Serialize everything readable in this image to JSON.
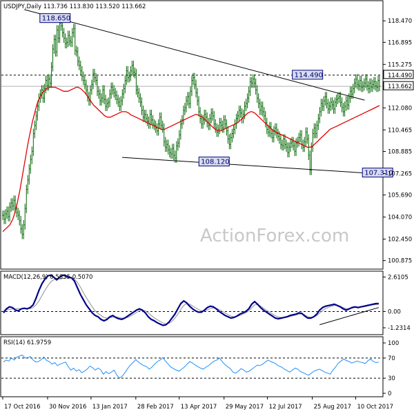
{
  "chart_data": [
    {
      "type": "candlestick",
      "header": "USDJPY,Daily  113.736 113.830 113.520 113.662",
      "watermark": "ActionForex.com",
      "colors": {
        "candle": "#006400",
        "ma": "#e00000",
        "trendline": "#000000",
        "label_bg": "#d7dcf0",
        "label_border": "#000080"
      },
      "y_ticks": [
        "118.470",
        "116.895",
        "115.275",
        "113.662",
        "112.080",
        "110.465",
        "108.885",
        "107.265",
        "105.690",
        "104.070",
        "102.450",
        "100.875"
      ],
      "y_tick_values": [
        118.47,
        116.895,
        115.275,
        113.662,
        112.08,
        110.465,
        108.885,
        107.265,
        105.69,
        104.07,
        102.45,
        100.875
      ],
      "ylim": [
        100.3,
        119.9
      ],
      "current_price": "113.662",
      "current_price_value": 113.662,
      "resistance": "114.490",
      "resistance_value": 114.49,
      "annotations": [
        {
          "text": "118.650",
          "x": 34,
          "y": 118.65
        },
        {
          "text": "114.490",
          "x": 261,
          "y": 114.49
        },
        {
          "text": "108.120",
          "x": 177,
          "y": 108.12
        },
        {
          "text": "107.310",
          "x": 324,
          "y": 107.31
        }
      ],
      "trendlines": [
        {
          "from": [
            20,
            119.3
          ],
          "to": [
            326,
            112.65
          ]
        },
        {
          "from": [
            108,
            108.45
          ],
          "to": [
            346,
            107.2
          ]
        }
      ],
      "x_ticks": [
        "17 Oct 2016",
        "30 Nov 2016",
        "13 Jan 2017",
        "28 Feb 2017",
        "13 Apr 2017",
        "29 May 2017",
        "12 Jul 2017",
        "25 Aug 2017",
        "10 Oct 2017"
      ],
      "x_tick_index": [
        0,
        32,
        63,
        95,
        126,
        158,
        189,
        221,
        252
      ],
      "x_count": 270,
      "closes": [
        104.2,
        103.9,
        104.3,
        104.5,
        104.1,
        104.8,
        105.1,
        104.9,
        105.3,
        104.7,
        104.4,
        104.2,
        103.8,
        103.2,
        102.8,
        103.5,
        104.7,
        106.1,
        106.8,
        107.6,
        108.3,
        108.9,
        110.2,
        110.8,
        111.5,
        112.2,
        112.8,
        113.1,
        113.4,
        112.8,
        113.5,
        114.1,
        113.7,
        114.2,
        113.9,
        115.1,
        116.4,
        117.1,
        116.2,
        117.8,
        117.2,
        118.3,
        118.1,
        117.6,
        117.2,
        116.8,
        116.9,
        117.4,
        117.0,
        116.9,
        117.6,
        117.9,
        116.3,
        116.2,
        115.5,
        115.2,
        114.8,
        114.4,
        114.1,
        113.8,
        113.4,
        112.9,
        112.6,
        113.4,
        113.8,
        114.6,
        114.3,
        114.1,
        113.3,
        113.1,
        112.6,
        112.8,
        113.4,
        112.7,
        112.2,
        112.4,
        112.5,
        113.1,
        113.6,
        113.4,
        113.2,
        113.0,
        112.7,
        112.5,
        112.2,
        112.6,
        113.1,
        113.5,
        114.1,
        114.8,
        114.3,
        114.4,
        114.8,
        115.2,
        114.7,
        114.6,
        113.4,
        113.2,
        112.8,
        112.5,
        111.9,
        111.4,
        111.6,
        111.3,
        111.1,
        110.9,
        111.6,
        111.2,
        110.9,
        110.8,
        110.6,
        110.4,
        110.9,
        111.4,
        110.8,
        110.6,
        109.6,
        109.2,
        109.4,
        109.0,
        108.8,
        108.7,
        109.1,
        108.6,
        108.4,
        109.3,
        109.5,
        110.1,
        110.9,
        111.2,
        111.9,
        112.1,
        112.6,
        112.9,
        112.4,
        113.3,
        114.1,
        114.3,
        113.8,
        113.2,
        112.6,
        111.8,
        111.3,
        110.9,
        111.2,
        111.6,
        111.4,
        111.0,
        110.8,
        111.3,
        111.7,
        111.5,
        110.9,
        110.6,
        110.3,
        110.5,
        111.0,
        110.8,
        110.6,
        111.2,
        110.9,
        110.4,
        109.8,
        109.4,
        109.9,
        110.2,
        110.5,
        110.9,
        111.3,
        111.5,
        111.9,
        111.7,
        111.3,
        111.6,
        112.2,
        112.4,
        112.8,
        113.3,
        114.0,
        113.9,
        114.2,
        113.9,
        113.4,
        112.8,
        112.4,
        111.9,
        112.2,
        111.8,
        111.5,
        111.0,
        110.5,
        110.3,
        110.7,
        110.2,
        109.9,
        110.4,
        110.6,
        110.2,
        110.0,
        109.8,
        109.4,
        109.3,
        109.8,
        109.4,
        109.2,
        108.8,
        109.2,
        109.5,
        109.6,
        109.3,
        108.9,
        109.5,
        109.6,
        109.9,
        110.1,
        109.4,
        109.2,
        109.6,
        110.3,
        109.8,
        108.6,
        107.5,
        109.2,
        110.2,
        110.6,
        110.2,
        110.8,
        111.3,
        111.8,
        112.4,
        112.2,
        112.6,
        112.9,
        112.4,
        112.0,
        112.2,
        112.5,
        112.3,
        112.0,
        112.5,
        112.7,
        112.8,
        112.9,
        112.5,
        112.1,
        111.8,
        112.2,
        112.6,
        112.3,
        112.8,
        113.3,
        113.1,
        113.5,
        113.9,
        114.2,
        113.8,
        113.7,
        114.1,
        113.6,
        113.7,
        113.9,
        114.2,
        113.7,
        113.5,
        113.9,
        113.6,
        113.8,
        114.0,
        113.7,
        113.6,
        114.1,
        113.662
      ],
      "ma": [
        103.0,
        103.1,
        103.2,
        103.3,
        103.4,
        103.5,
        103.7,
        103.9,
        104.2,
        104.6,
        105.0,
        105.5,
        106.0,
        106.6,
        107.2,
        107.8,
        108.4,
        109.0,
        109.6,
        110.1,
        110.6,
        111.1,
        111.5,
        111.9,
        112.3,
        112.6,
        112.8,
        113.0,
        113.2,
        113.3,
        113.4,
        113.5,
        113.55,
        113.6,
        113.6,
        113.6,
        113.6,
        113.6,
        113.55,
        113.5,
        113.45,
        113.4,
        113.35,
        113.3,
        113.3,
        113.3,
        113.3,
        113.35,
        113.4,
        113.45,
        113.5,
        113.55,
        113.6,
        113.6,
        113.55,
        113.5,
        113.4,
        113.3,
        113.2,
        113.05,
        112.9,
        112.75,
        112.6,
        112.45,
        112.3,
        112.2,
        112.1,
        112.0,
        111.9,
        111.8,
        111.7,
        111.6,
        111.5,
        111.45,
        111.4,
        111.4,
        111.4,
        111.45,
        111.5,
        111.55,
        111.6,
        111.65,
        111.7,
        111.75,
        111.8,
        111.8,
        111.8,
        111.8,
        111.75,
        111.7,
        111.6,
        111.55,
        111.5,
        111.45,
        111.4,
        111.35,
        111.3,
        111.25,
        111.2,
        111.15,
        111.1,
        111.05,
        111.0,
        110.95,
        110.9,
        110.85,
        110.8,
        110.75,
        110.7,
        110.65,
        110.6,
        110.55,
        110.5,
        110.5,
        110.5,
        110.55,
        110.6,
        110.65,
        110.7,
        110.75,
        110.8,
        110.85,
        110.9,
        110.95,
        111.0,
        111.05,
        111.1,
        111.15,
        111.2,
        111.25,
        111.3,
        111.35,
        111.4,
        111.45,
        111.5,
        111.55,
        111.6,
        111.6,
        111.55,
        111.5,
        111.45,
        111.4,
        111.3,
        111.2,
        111.1,
        111.0,
        110.9,
        110.8,
        110.7,
        110.6,
        110.5,
        110.45,
        110.4,
        110.4,
        110.4,
        110.45,
        110.5,
        110.55,
        110.6,
        110.65,
        110.7,
        110.75,
        110.8,
        110.85,
        110.9,
        110.95,
        111.0,
        111.1,
        111.2,
        111.3,
        111.4,
        111.5,
        111.6,
        111.7,
        111.75,
        111.8,
        111.8,
        111.75,
        111.7,
        111.6,
        111.5,
        111.4,
        111.3,
        111.2,
        111.1,
        111.0,
        110.9,
        110.8,
        110.7,
        110.6,
        110.5,
        110.4,
        110.35,
        110.3,
        110.25,
        110.2,
        110.15,
        110.1,
        110.05,
        110.0,
        109.95,
        109.9,
        109.85,
        109.8,
        109.75,
        109.7,
        109.65,
        109.6,
        109.55,
        109.5,
        109.45,
        109.4,
        109.35,
        109.3,
        109.25,
        109.2,
        109.2,
        109.2,
        109.25,
        109.3,
        109.4,
        109.5,
        109.6,
        109.7,
        109.8,
        109.9,
        110.0,
        110.1,
        110.2,
        110.3,
        110.4,
        110.5,
        110.55,
        110.6,
        110.65,
        110.7,
        110.75,
        110.8,
        110.85,
        110.9,
        110.95,
        111.0,
        111.05,
        111.1,
        111.15,
        111.2,
        111.25,
        111.3,
        111.35,
        111.4,
        111.45,
        111.5,
        111.55,
        111.6,
        111.65,
        111.7,
        111.75,
        111.8,
        111.85,
        111.9,
        111.95,
        112.0,
        112.05,
        112.1,
        112.15,
        112.2,
        112.25
      ]
    },
    {
      "type": "line",
      "title": "MACD(12,26,9) 0.5835 0.5070",
      "y_ticks": [
        "2.6105",
        "0.00",
        "-1.2314"
      ],
      "y_tick_values": [
        2.6105,
        0.0,
        -1.2314
      ],
      "ylim": [
        -1.7,
        3.0
      ],
      "zero_line": true,
      "series": [
        {
          "values": [
            -0.1,
            0.2,
            0.35,
            0.3,
            0.1,
            0.05,
            0.2,
            0.25,
            0.2,
            0.3,
            0.5,
            1.0,
            1.6,
            2.1,
            2.45,
            2.7,
            2.75,
            2.6,
            2.4,
            2.6,
            2.75,
            2.7,
            2.6,
            2.55,
            2.3,
            1.8,
            1.3,
            0.9,
            0.5,
            0.2,
            -0.1,
            -0.3,
            -0.4,
            -0.6,
            -0.7,
            -0.6,
            -0.4,
            -0.3,
            -0.45,
            -0.55,
            -0.6,
            -0.5,
            -0.35,
            -0.2,
            -0.05,
            0.1,
            0.2,
            0.1,
            -0.1,
            -0.4,
            -0.6,
            -0.7,
            -0.85,
            -0.95,
            -1.05,
            -1.0,
            -0.8,
            -0.5,
            -0.2,
            0.2,
            0.6,
            0.8,
            0.65,
            0.4,
            0.2,
            0.05,
            -0.05,
            -0.05,
            0.1,
            0.3,
            0.4,
            0.35,
            0.2,
            0.0,
            -0.15,
            -0.3,
            -0.4,
            -0.5,
            -0.45,
            -0.35,
            -0.2,
            -0.1,
            0.0,
            0.2,
            0.55,
            0.75,
            0.55,
            0.3,
            0.1,
            -0.05,
            -0.2,
            -0.35,
            -0.5,
            -0.55,
            -0.5,
            -0.45,
            -0.4,
            -0.3,
            -0.25,
            -0.2,
            -0.1,
            -0.15,
            -0.35,
            -0.5,
            -0.5,
            -0.4,
            -0.2,
            0.1,
            0.3,
            0.4,
            0.45,
            0.5,
            0.55,
            0.45,
            0.35,
            0.2,
            0.1,
            0.2,
            0.3,
            0.35,
            0.3,
            0.35,
            0.4,
            0.45,
            0.5,
            0.55,
            0.6,
            0.6
          ]
        },
        {
          "values": [
            0.1,
            0.12,
            0.15,
            0.2,
            0.22,
            0.22,
            0.2,
            0.2,
            0.2,
            0.22,
            0.3,
            0.5,
            0.8,
            1.2,
            1.6,
            1.95,
            2.25,
            2.4,
            2.45,
            2.45,
            2.5,
            2.55,
            2.57,
            2.55,
            2.45,
            2.2,
            1.85,
            1.45,
            1.05,
            0.7,
            0.35,
            0.05,
            -0.15,
            -0.3,
            -0.45,
            -0.5,
            -0.48,
            -0.42,
            -0.4,
            -0.45,
            -0.5,
            -0.5,
            -0.45,
            -0.35,
            -0.22,
            -0.08,
            0.05,
            0.1,
            0.05,
            -0.1,
            -0.3,
            -0.48,
            -0.62,
            -0.75,
            -0.87,
            -0.95,
            -0.9,
            -0.75,
            -0.5,
            -0.2,
            0.15,
            0.45,
            0.6,
            0.55,
            0.42,
            0.28,
            0.15,
            0.05,
            0.05,
            0.12,
            0.22,
            0.28,
            0.25,
            0.15,
            0.02,
            -0.12,
            -0.25,
            -0.35,
            -0.4,
            -0.38,
            -0.3,
            -0.2,
            -0.1,
            0.05,
            0.28,
            0.5,
            0.52,
            0.42,
            0.25,
            0.1,
            -0.05,
            -0.18,
            -0.32,
            -0.42,
            -0.46,
            -0.46,
            -0.43,
            -0.38,
            -0.32,
            -0.26,
            -0.2,
            -0.18,
            -0.26,
            -0.38,
            -0.44,
            -0.42,
            -0.32,
            -0.12,
            0.08,
            0.22,
            0.32,
            0.4,
            0.46,
            0.46,
            0.4,
            0.3,
            0.22,
            0.22,
            0.26,
            0.3,
            0.3,
            0.32,
            0.36,
            0.4,
            0.45,
            0.5,
            0.52,
            0.55
          ]
        }
      ],
      "trendline": {
        "from": [
          107,
          -1.0
        ],
        "to": [
          127,
          0.3
        ]
      }
    },
    {
      "type": "line",
      "title": "RSI(14) 61.9759",
      "y_ticks": [
        "100",
        "70",
        "30",
        "0"
      ],
      "y_tick_values": [
        100,
        70,
        30,
        0
      ],
      "ylim": [
        0,
        100
      ],
      "series": [
        {
          "values": [
            62,
            66,
            64,
            70,
            66,
            72,
            74,
            76,
            70,
            71,
            73,
            66,
            62,
            63,
            67,
            72,
            65,
            63,
            58,
            61,
            55,
            58,
            60,
            62,
            53,
            46,
            50,
            44,
            47,
            41,
            44,
            48,
            54,
            51,
            46,
            50,
            47,
            38,
            43,
            39,
            42,
            46,
            36,
            30,
            34,
            41,
            49,
            56,
            61,
            67,
            62,
            58,
            55,
            53,
            48,
            52,
            58,
            63,
            66,
            71,
            64,
            58,
            52,
            49,
            46,
            44,
            48,
            52,
            58,
            63,
            60,
            56,
            53,
            50,
            48,
            52,
            55,
            60,
            64,
            66,
            70,
            63,
            57,
            53,
            49,
            42,
            40,
            44,
            49,
            46,
            42,
            44,
            48,
            52,
            56,
            55,
            58,
            62,
            66,
            63,
            61,
            58,
            54,
            52,
            48,
            45,
            42,
            46,
            50,
            48,
            43,
            41,
            38,
            36,
            40,
            44,
            46,
            48,
            45,
            42,
            40,
            38,
            46,
            52,
            60,
            64,
            68,
            65,
            63,
            60,
            62,
            64,
            62,
            61,
            59,
            65,
            68,
            63,
            61,
            62
          ]
        }
      ]
    }
  ]
}
